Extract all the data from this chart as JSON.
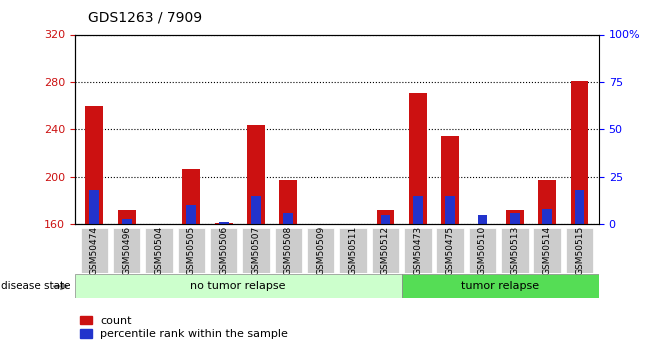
{
  "title": "GDS1263 / 7909",
  "categories": [
    "GSM50474",
    "GSM50496",
    "GSM50504",
    "GSM50505",
    "GSM50506",
    "GSM50507",
    "GSM50508",
    "GSM50509",
    "GSM50511",
    "GSM50512",
    "GSM50473",
    "GSM50475",
    "GSM50510",
    "GSM50513",
    "GSM50514",
    "GSM50515"
  ],
  "count_values": [
    260,
    172,
    160,
    207,
    161,
    244,
    197,
    160,
    160,
    172,
    271,
    234,
    160,
    172,
    197,
    281
  ],
  "percentile_values": [
    18,
    3,
    0,
    10,
    1,
    15,
    6,
    0,
    0,
    5,
    15,
    15,
    5,
    6,
    8,
    18
  ],
  "y_min": 160,
  "y_max": 320,
  "y_ticks": [
    160,
    200,
    240,
    280,
    320
  ],
  "y2_ticks": [
    0,
    25,
    50,
    75,
    100
  ],
  "no_tumor_count": 10,
  "tumor_count": 6,
  "no_tumor_label": "no tumor relapse",
  "tumor_label": "tumor relapse",
  "disease_state_label": "disease state",
  "legend_count": "count",
  "legend_percentile": "percentile rank within the sample",
  "bar_color_red": "#cc1111",
  "bar_color_blue": "#2233cc",
  "no_tumor_bg": "#ccffcc",
  "tumor_bg": "#55dd55",
  "tick_bg": "#cccccc",
  "bar_width": 0.55
}
